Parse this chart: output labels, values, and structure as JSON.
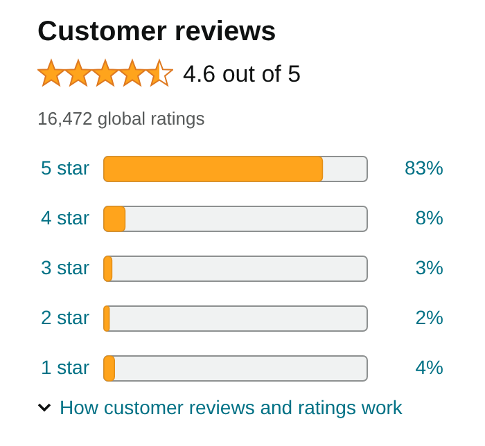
{
  "chart_data": {
    "type": "bar",
    "orientation": "horizontal",
    "title": "Customer reviews",
    "annotations": [
      "4.6 out of 5",
      "16,472 global ratings",
      "How customer reviews and ratings work"
    ],
    "categories": [
      "5 star",
      "4 star",
      "3 star",
      "2 star",
      "1 star"
    ],
    "values": [
      83,
      8,
      3,
      2,
      4
    ],
    "value_labels": [
      "83%",
      "8%",
      "3%",
      "2%",
      "4%"
    ],
    "color": "#ffa41c",
    "xlim": [
      0,
      100
    ],
    "tick_labels": "y"
  }
}
